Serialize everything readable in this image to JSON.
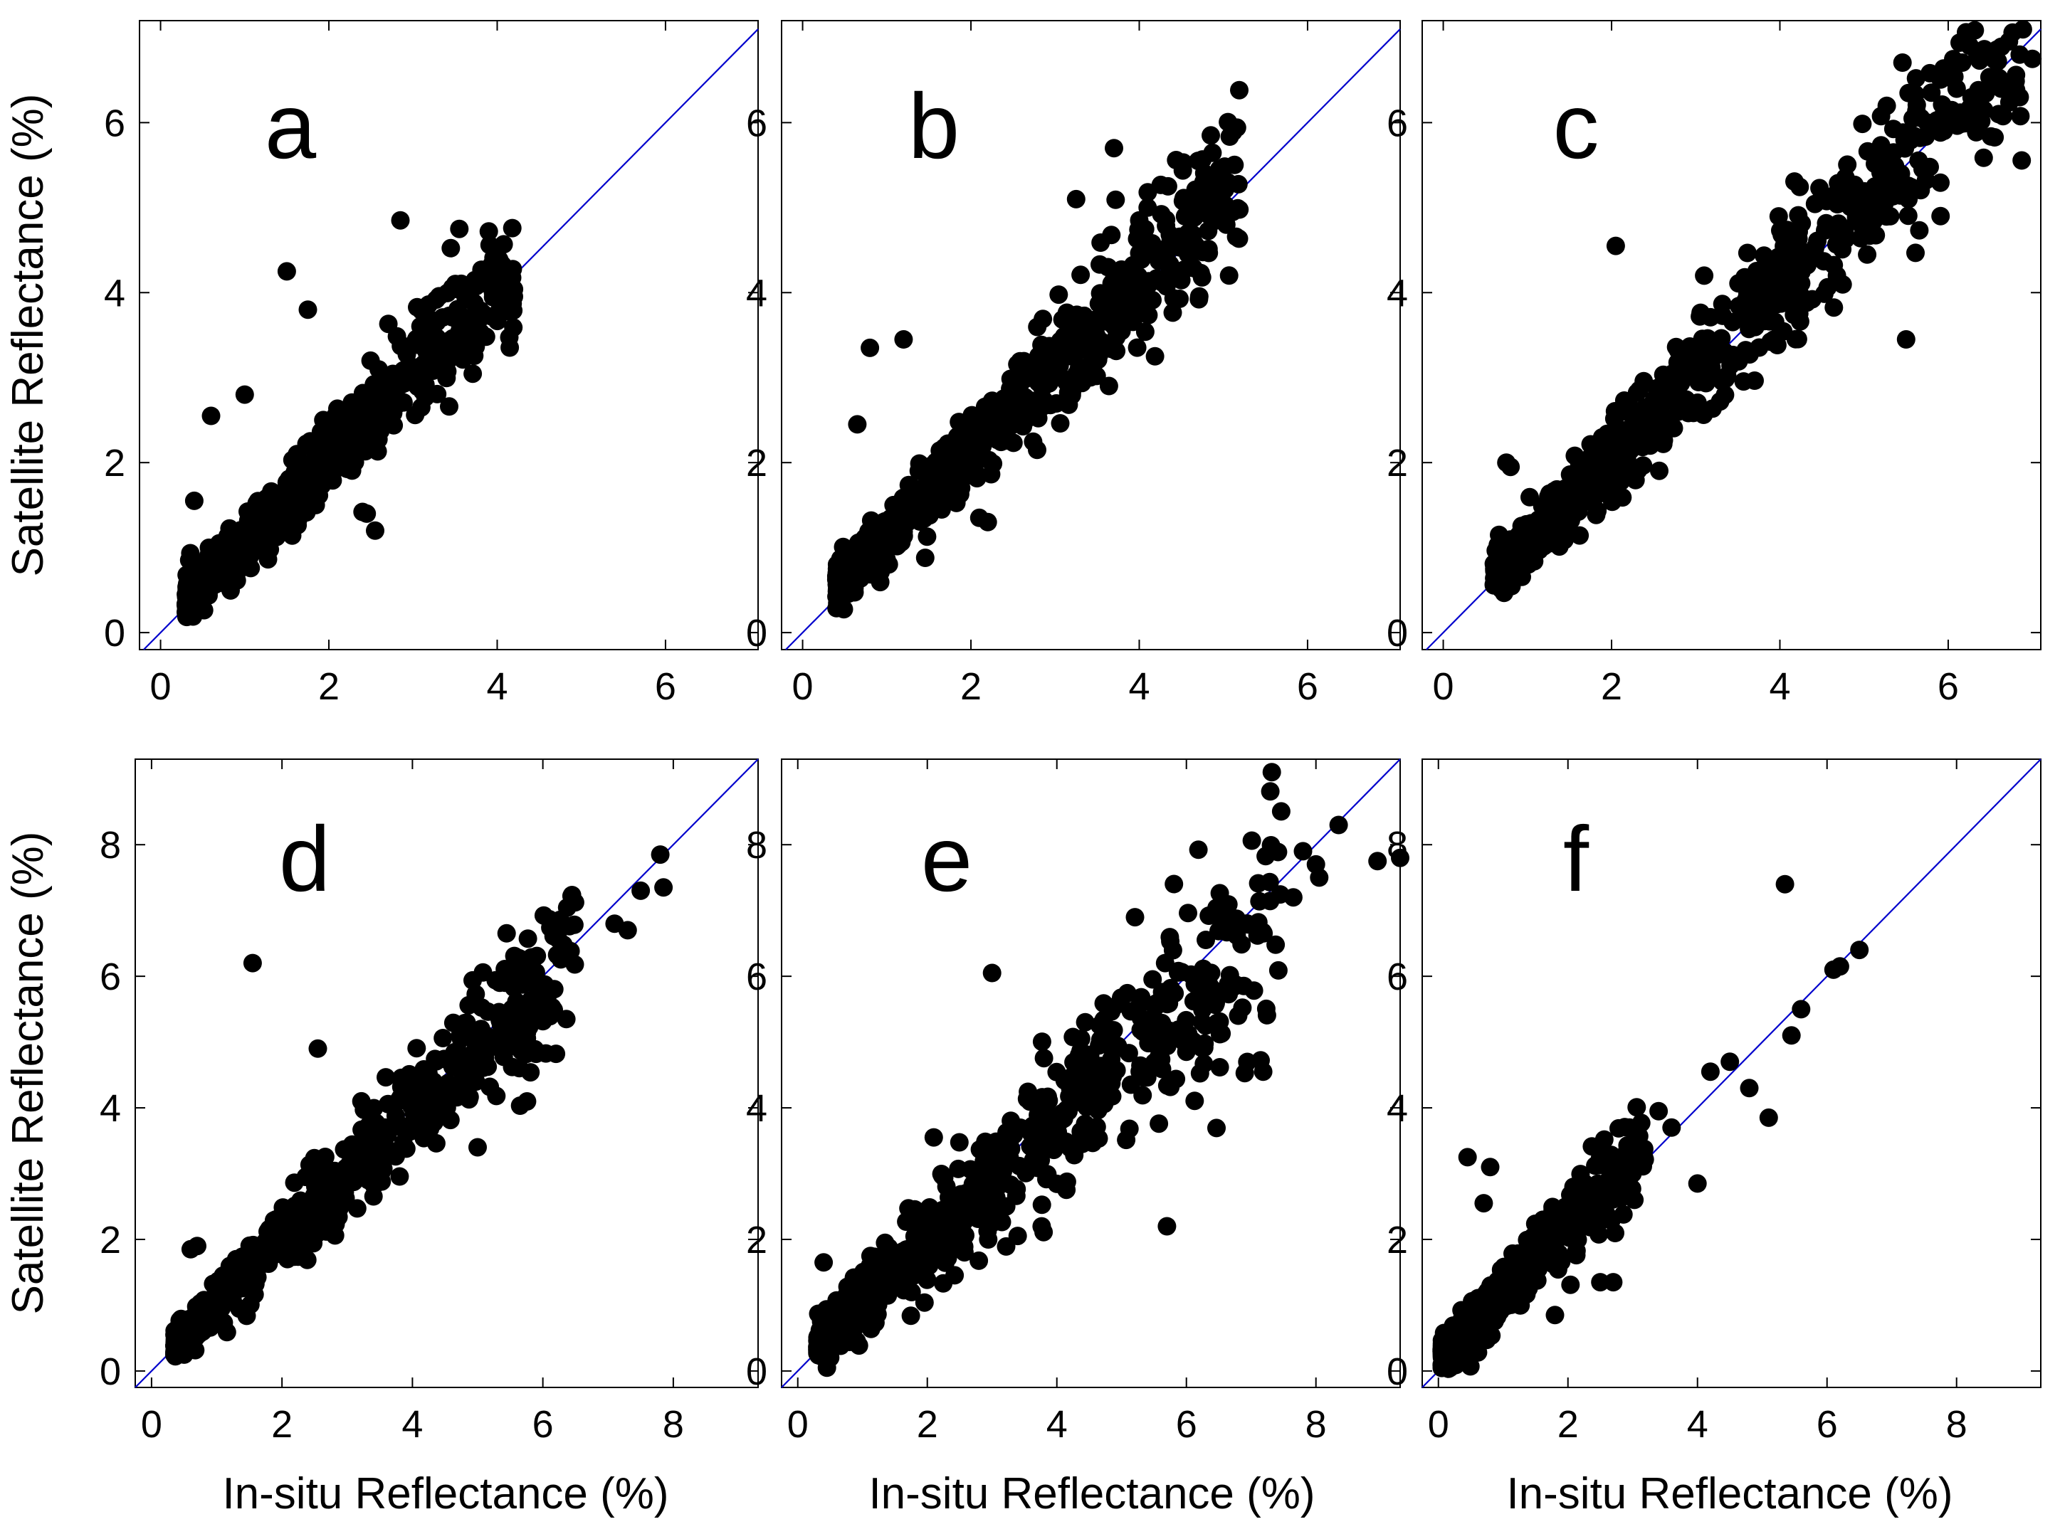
{
  "colors": {
    "identity_line": "#0000cc",
    "points": "#000000",
    "background": "#ffffff"
  },
  "chart_data": [
    {
      "id": "a",
      "type": "scatter",
      "label": "a",
      "xlim": [
        -0.25,
        7.1
      ],
      "ylim": [
        -0.2,
        7.2
      ],
      "xticks": [
        0,
        2,
        4,
        6
      ],
      "yticks": [
        0,
        2,
        4,
        6
      ],
      "xlabel": "",
      "ylabel": "Satellite Reflectance (%)",
      "identity_line": true,
      "n_points": 650,
      "slope": 0.98,
      "intercept": 0.12,
      "spread": 0.3,
      "xrange": [
        0.3,
        4.2
      ],
      "seed": 11,
      "x": [
        2.85,
        3.55,
        3.9,
        3.95,
        4.05,
        3.6,
        1.5,
        1.75,
        2.55,
        2.4,
        2.45,
        0.4,
        0.6,
        1.0
      ],
      "y": [
        4.85,
        4.75,
        4.72,
        4.0,
        3.9,
        3.65,
        4.25,
        3.8,
        1.2,
        1.42,
        1.4,
        1.55,
        2.55,
        2.8
      ]
    },
    {
      "id": "b",
      "type": "scatter",
      "label": "b",
      "xlim": [
        -0.25,
        7.1
      ],
      "ylim": [
        -0.2,
        7.2
      ],
      "xticks": [
        0,
        2,
        4,
        6
      ],
      "yticks": [
        0,
        2,
        4,
        6
      ],
      "xlabel": "",
      "ylabel": "",
      "identity_line": true,
      "n_points": 700,
      "slope": 1.0,
      "intercept": 0.15,
      "spread": 0.28,
      "xrange": [
        0.4,
        5.2
      ],
      "seed": 23,
      "x": [
        4.85,
        4.95,
        4.7,
        5.05,
        3.7,
        3.25,
        1.2,
        0.8,
        0.65,
        2.1,
        2.2,
        4.1,
        4.0
      ],
      "y": [
        5.85,
        5.45,
        5.55,
        5.3,
        5.7,
        5.1,
        3.45,
        3.35,
        2.45,
        1.35,
        1.3,
        5.0,
        4.85
      ]
    },
    {
      "id": "c",
      "type": "scatter",
      "label": "c",
      "xlim": [
        -0.25,
        7.1
      ],
      "ylim": [
        -0.2,
        7.2
      ],
      "xticks": [
        0,
        2,
        4,
        6
      ],
      "yticks": [
        0,
        2,
        4,
        6
      ],
      "xlabel": "",
      "ylabel": "",
      "identity_line": true,
      "n_points": 700,
      "slope": 1.0,
      "intercept": 0.05,
      "spread": 0.28,
      "xrange": [
        0.6,
        6.9
      ],
      "seed": 37,
      "x": [
        6.85,
        7.0,
        6.85,
        6.6,
        6.1,
        2.05,
        0.75,
        0.8,
        5.5,
        3.1,
        5.35
      ],
      "y": [
        6.8,
        6.75,
        6.3,
        6.1,
        6.4,
        4.55,
        2.0,
        1.95,
        3.45,
        4.2,
        5.65
      ]
    },
    {
      "id": "d",
      "type": "scatter",
      "label": "d",
      "xlim": [
        -0.25,
        9.3
      ],
      "ylim": [
        -0.25,
        9.3
      ],
      "xticks": [
        0,
        2,
        4,
        6,
        8
      ],
      "yticks": [
        0,
        2,
        4,
        6,
        8
      ],
      "xlabel": "In-situ Reflectance (%)",
      "ylabel": "Satellite Reflectance (%)",
      "identity_line": true,
      "n_points": 650,
      "slope": 0.97,
      "intercept": 0.05,
      "spread": 0.3,
      "xrange": [
        0.35,
        6.5
      ],
      "seed": 41,
      "x": [
        7.8,
        7.85,
        7.5,
        7.3,
        7.1,
        1.55,
        2.55,
        0.7,
        0.6,
        6.0,
        5.0
      ],
      "y": [
        7.85,
        7.35,
        7.3,
        6.7,
        6.8,
        6.2,
        4.9,
        1.9,
        1.85,
        5.45,
        3.4
      ]
    },
    {
      "id": "e",
      "type": "scatter",
      "label": "e",
      "xlim": [
        -0.25,
        9.3
      ],
      "ylim": [
        -0.25,
        9.3
      ],
      "xticks": [
        0,
        2,
        4,
        6,
        8
      ],
      "yticks": [
        0,
        2,
        4,
        6,
        8
      ],
      "xlabel": "In-situ Reflectance (%)",
      "ylabel": "",
      "identity_line": true,
      "n_points": 700,
      "slope": 0.94,
      "intercept": 0.1,
      "spread": 0.42,
      "xrange": [
        0.3,
        7.5
      ],
      "seed": 53,
      "x": [
        8.35,
        9.3,
        8.95,
        8.0,
        8.05,
        7.8,
        7.65,
        3.0,
        5.7,
        2.1,
        0.4,
        0.45
      ],
      "y": [
        8.3,
        7.8,
        7.75,
        7.7,
        7.5,
        7.9,
        7.2,
        6.05,
        2.2,
        3.55,
        1.65,
        0.05
      ]
    },
    {
      "id": "f",
      "type": "scatter",
      "label": "f",
      "xlim": [
        -0.25,
        9.3
      ],
      "ylim": [
        -0.25,
        9.3
      ],
      "xticks": [
        0,
        2,
        4,
        6,
        8
      ],
      "yticks": [
        0,
        2,
        4,
        6,
        8
      ],
      "xlabel": "In-situ Reflectance (%)",
      "ylabel": "",
      "identity_line": true,
      "n_points": 450,
      "slope": 1.0,
      "intercept": 0.15,
      "spread": 0.35,
      "xrange": [
        0.05,
        3.2
      ],
      "seed": 67,
      "x": [
        5.35,
        6.5,
        6.2,
        6.1,
        5.6,
        5.45,
        5.1,
        4.0,
        4.5,
        4.8,
        4.2,
        3.4,
        3.6,
        0.45,
        0.8,
        0.7,
        1.8,
        2.5,
        2.7
      ],
      "y": [
        7.4,
        6.4,
        6.15,
        6.1,
        5.5,
        5.1,
        3.85,
        2.85,
        4.7,
        4.3,
        4.55,
        3.95,
        3.7,
        3.25,
        3.1,
        2.55,
        0.85,
        1.35,
        1.35
      ]
    }
  ]
}
